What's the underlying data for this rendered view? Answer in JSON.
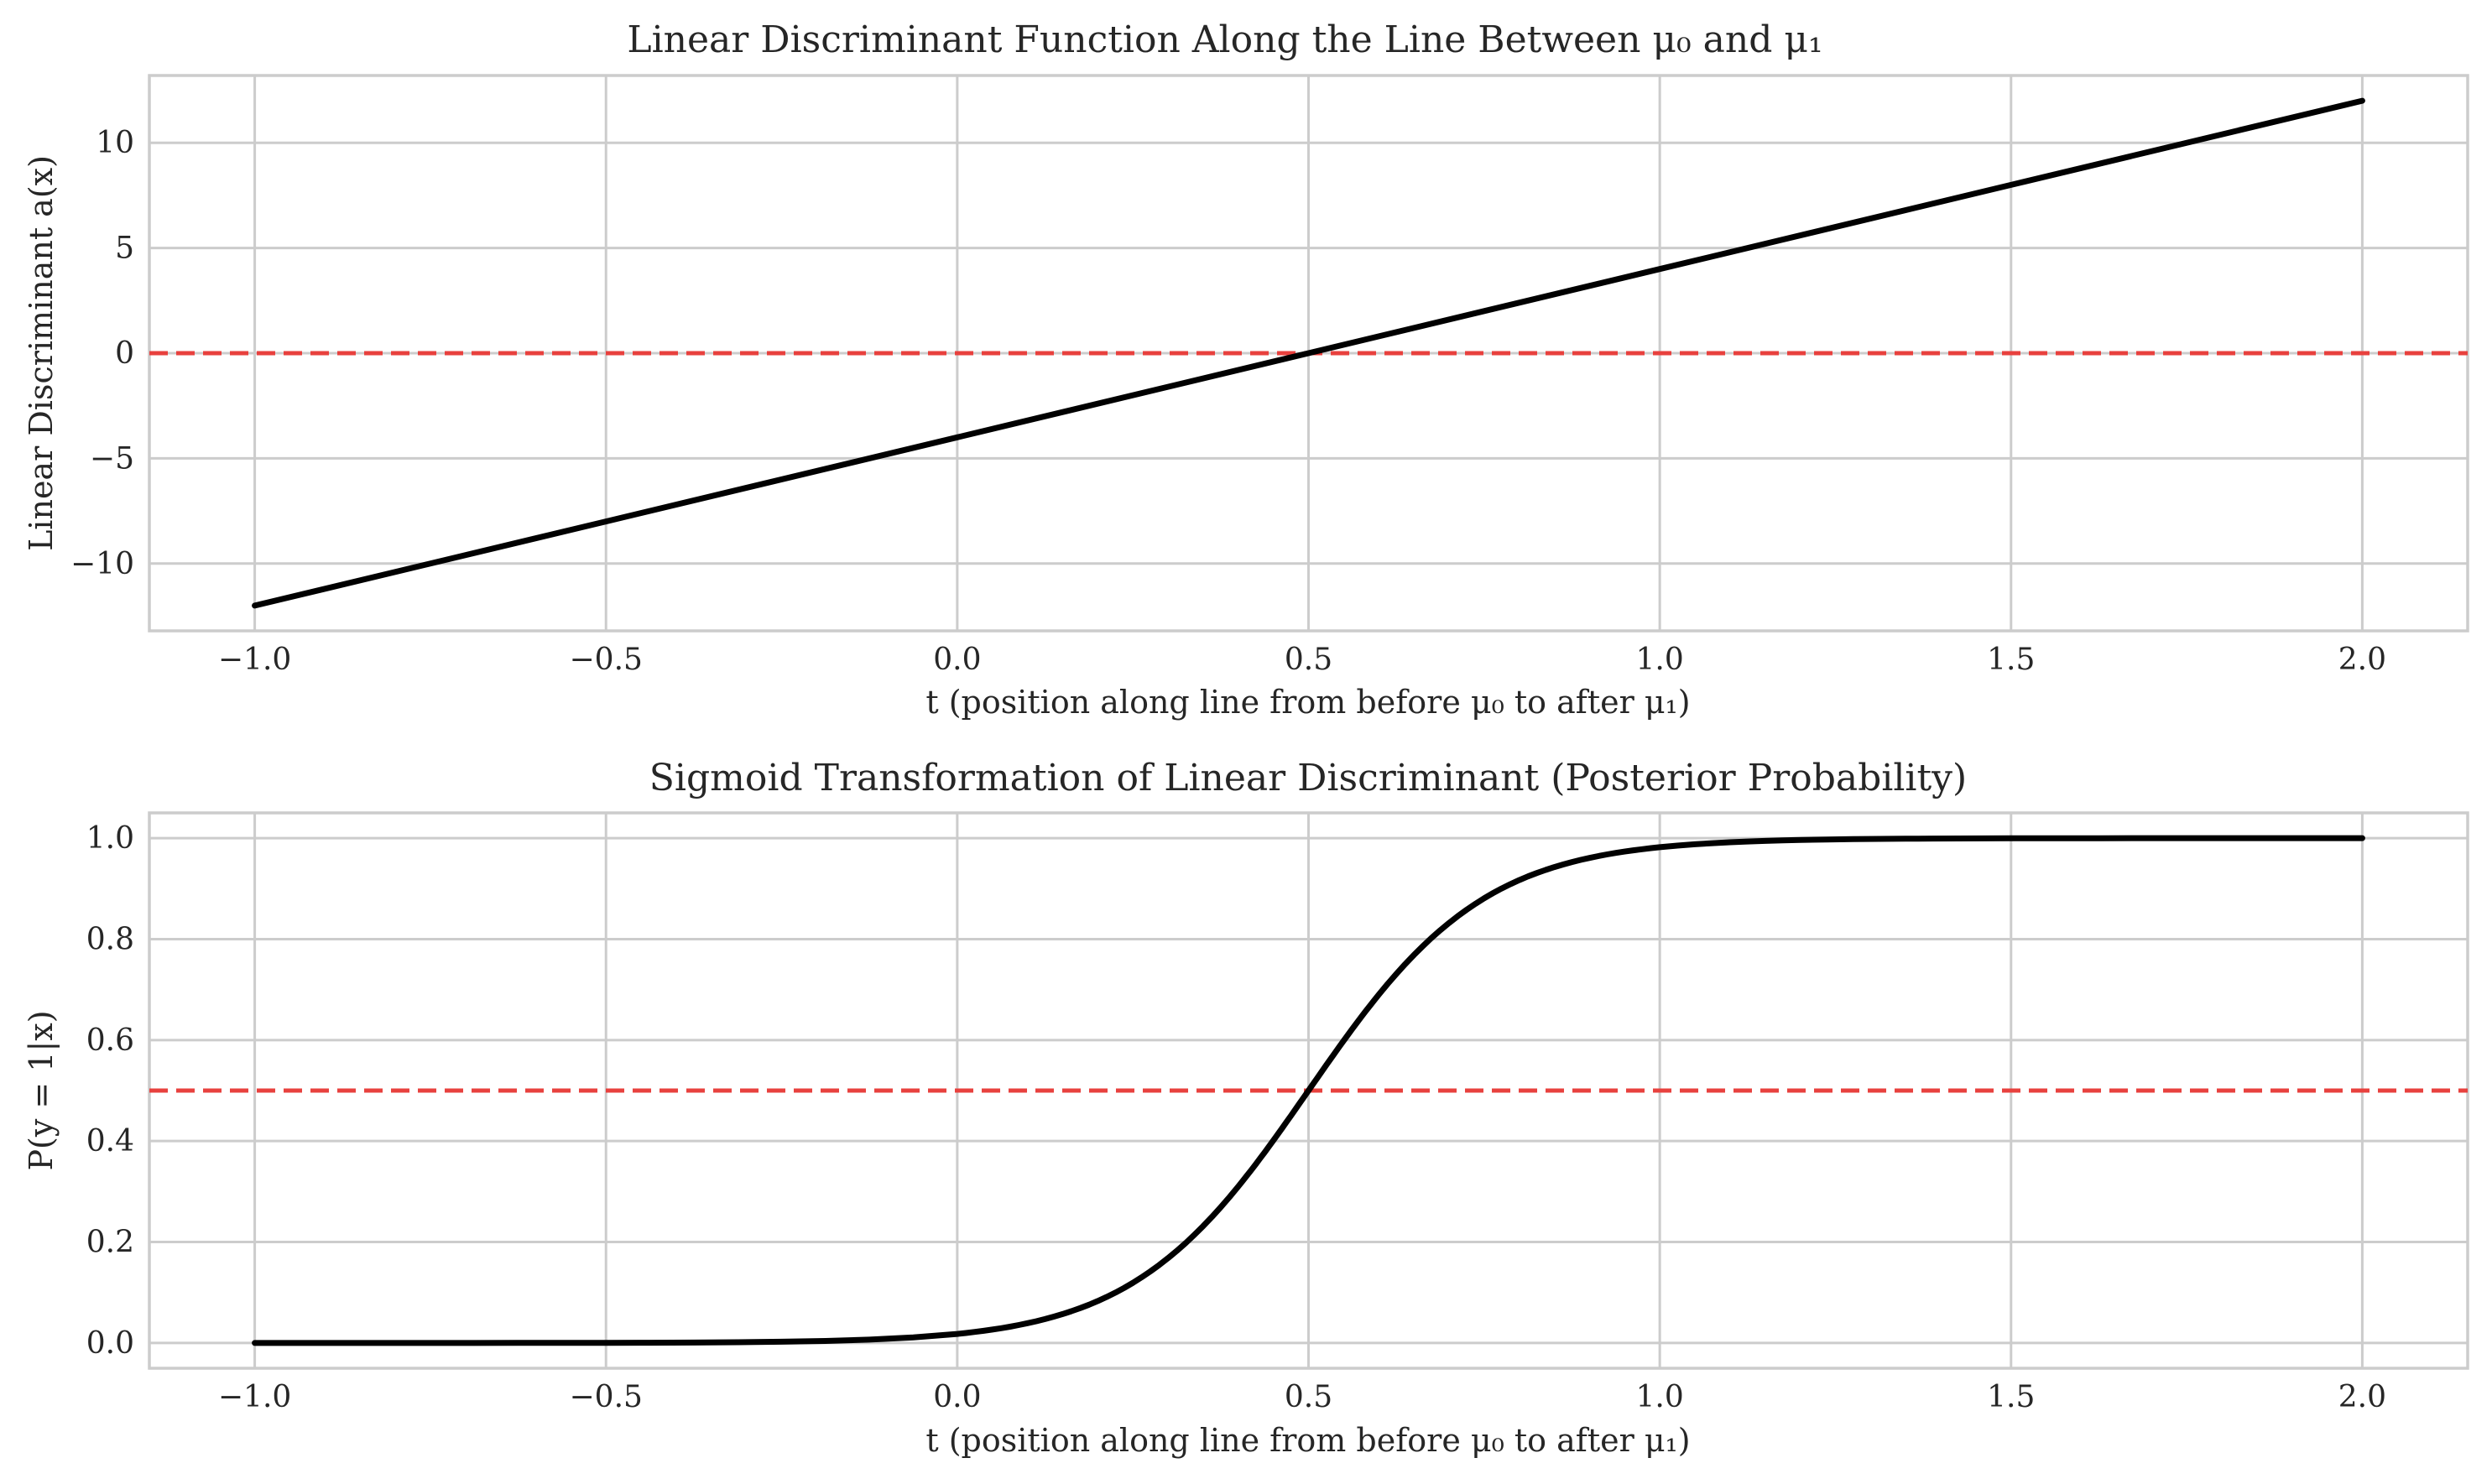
{
  "chart_data": [
    {
      "type": "line",
      "title": "Linear Discriminant Function Along the Line Between μ₀ and μ₁",
      "xlabel": "t (position along line from before μ₀ to after μ₁)",
      "ylabel": "Linear Discriminant a(x)",
      "xlim": [
        -1.15,
        2.15
      ],
      "ylim": [
        -13.2,
        13.2
      ],
      "xticks": [
        -1.0,
        -0.5,
        0.0,
        0.5,
        1.0,
        1.5,
        2.0
      ],
      "xtick_labels": [
        "−1.0",
        "−0.5",
        "0.0",
        "0.5",
        "1.0",
        "1.5",
        "2.0"
      ],
      "yticks": [
        -10,
        -5,
        0,
        5,
        10
      ],
      "ytick_labels": [
        "−10",
        "−5",
        "0",
        "5",
        "10"
      ],
      "grid": true,
      "series": [
        {
          "color": "#000000",
          "x": [
            -1.0,
            -0.5,
            0.0,
            0.5,
            1.0,
            1.5,
            2.0
          ],
          "y": [
            -12,
            -8,
            -4,
            0,
            4,
            8,
            12
          ]
        }
      ],
      "reference_line": {
        "axis": "y",
        "value": 0,
        "color": "#e8413e",
        "style": "dashed"
      }
    },
    {
      "type": "line",
      "title": "Sigmoid Transformation of Linear Discriminant (Posterior Probability)",
      "xlabel": "t (position along line from before μ₀ to after μ₁)",
      "ylabel": "P(y = 1|x)",
      "xlim": [
        -1.15,
        2.15
      ],
      "ylim": [
        -0.05,
        1.05
      ],
      "xticks": [
        -1.0,
        -0.5,
        0.0,
        0.5,
        1.0,
        1.5,
        2.0
      ],
      "xtick_labels": [
        "−1.0",
        "−0.5",
        "0.0",
        "0.5",
        "1.0",
        "1.5",
        "2.0"
      ],
      "yticks": [
        0.0,
        0.2,
        0.4,
        0.6,
        0.8,
        1.0
      ],
      "ytick_labels": [
        "0.0",
        "0.2",
        "0.4",
        "0.6",
        "0.8",
        "1.0"
      ],
      "grid": true,
      "series": [
        {
          "color": "#000000",
          "x": [
            -1.0,
            -0.5,
            0.0,
            0.1,
            0.2,
            0.3,
            0.4,
            0.45,
            0.5,
            0.55,
            0.6,
            0.7,
            0.8,
            0.9,
            1.0,
            1.2,
            1.5,
            2.0
          ],
          "y": [
            0.0,
            0.0,
            0.018,
            0.039,
            0.083,
            0.168,
            0.31,
            0.401,
            0.5,
            0.599,
            0.69,
            0.832,
            0.917,
            0.961,
            0.982,
            0.997,
            1.0,
            1.0
          ]
        }
      ],
      "reference_line": {
        "axis": "y",
        "value": 0.5,
        "color": "#e8413e",
        "style": "dashed"
      }
    }
  ]
}
